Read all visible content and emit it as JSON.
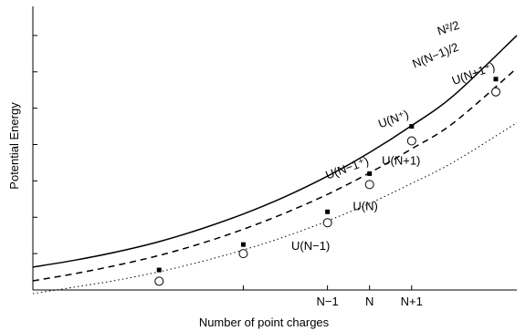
{
  "chart_data": {
    "type": "line",
    "title": "",
    "xlabel": "Number of point charges",
    "ylabel": "Potential Energy",
    "xlim": [
      0,
      11.5
    ],
    "ylim": [
      0,
      7.8
    ],
    "x_tick_labels": [
      {
        "x": 5,
        "label": ""
      },
      {
        "x": 7,
        "label": "N−1"
      },
      {
        "x": 8,
        "label": "N"
      },
      {
        "x": 9,
        "label": "N+1"
      }
    ],
    "y_ticks_unlabeled": [
      1,
      2,
      3,
      4,
      5,
      6,
      7
    ],
    "series": [
      {
        "name": "N²/2",
        "style": "solid",
        "x": [
          0,
          1,
          2,
          3,
          4,
          5,
          6,
          7,
          8,
          9,
          10,
          11.5
        ],
        "y": [
          0.63,
          0.82,
          1.05,
          1.33,
          1.68,
          2.09,
          2.57,
          3.13,
          3.78,
          4.52,
          5.35,
          7.0
        ]
      },
      {
        "name": "N(N−1)/2",
        "style": "dashed",
        "x": [
          0,
          1,
          2,
          3,
          4,
          5,
          6,
          7,
          8,
          9,
          10,
          11.5
        ],
        "y": [
          0.25,
          0.45,
          0.68,
          0.95,
          1.28,
          1.67,
          2.12,
          2.63,
          3.22,
          3.88,
          4.6,
          6.1
        ]
      },
      {
        "name": "",
        "style": "dotted",
        "x": [
          0,
          1,
          2,
          3,
          4,
          5,
          6,
          7,
          8,
          9,
          10,
          11.5
        ],
        "y": [
          -0.1,
          0.08,
          0.27,
          0.5,
          0.78,
          1.1,
          1.47,
          1.9,
          2.38,
          2.93,
          3.52,
          4.6
        ]
      }
    ],
    "points_squares": [
      {
        "x": 3,
        "y": 0.55
      },
      {
        "x": 5,
        "y": 1.25
      },
      {
        "x": 7,
        "y": 2.15
      },
      {
        "x": 8,
        "y": 3.2
      },
      {
        "x": 9,
        "y": 4.5
      },
      {
        "x": 11,
        "y": 5.8
      }
    ],
    "points_circles": [
      {
        "x": 3,
        "y": 0.24
      },
      {
        "x": 5,
        "y": 1.0
      },
      {
        "x": 7,
        "y": 1.85
      },
      {
        "x": 8,
        "y": 2.9
      },
      {
        "x": 9,
        "y": 4.1
      },
      {
        "x": 11,
        "y": 5.45
      }
    ],
    "annotations": [
      {
        "text": "N²/2",
        "x": 9.9,
        "y": 7.1,
        "rotate": -18
      },
      {
        "text": "N(N−1)/2",
        "x": 9.6,
        "y": 6.35,
        "rotate": -22
      },
      {
        "text": "U(N+1⁺)",
        "x": 10.5,
        "y": 5.85,
        "rotate": -20
      },
      {
        "text": "U(N⁺)",
        "x": 8.6,
        "y": 4.6,
        "rotate": -20
      },
      {
        "text": "U(N+1)",
        "x": 8.75,
        "y": 3.45,
        "rotate": 0
      },
      {
        "text": "U(N−1⁺)",
        "x": 7.5,
        "y": 3.25,
        "rotate": -20
      },
      {
        "text": "U(N)",
        "x": 7.9,
        "y": 2.2,
        "rotate": 0
      },
      {
        "text": "U(N−1)",
        "x": 6.6,
        "y": 1.1,
        "rotate": 0
      }
    ]
  }
}
